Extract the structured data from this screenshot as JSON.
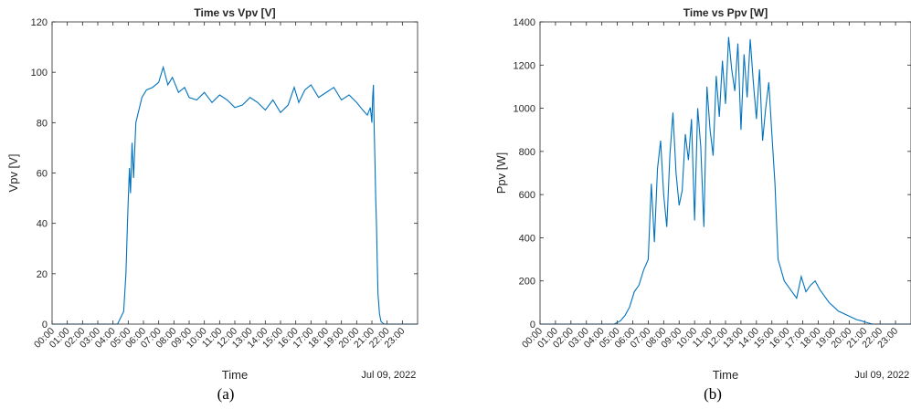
{
  "figure": {
    "panel_labels": [
      "(a)",
      "(b)"
    ]
  },
  "colors": {
    "line": "#0072BD",
    "axes": "#262626",
    "text": "#262626"
  },
  "chart_data": [
    {
      "type": "line",
      "title": "Time vs Vpv [V]",
      "xlabel": "Time",
      "ylabel": "Vpv [V]",
      "date_label": "Jul 09, 2022",
      "x_ticks": [
        "00:00",
        "01:00",
        "02:00",
        "03:00",
        "04:00",
        "05:00",
        "06:00",
        "07:00",
        "08:00",
        "09:00",
        "10:00",
        "11:00",
        "12:00",
        "13:00",
        "14:00",
        "15:00",
        "16:00",
        "17:00",
        "18:00",
        "19:00",
        "20:00",
        "21:00",
        "22:00",
        "23:00"
      ],
      "xlim": [
        0,
        24
      ],
      "ylim": [
        0,
        120
      ],
      "y_ticks": [
        0,
        20,
        40,
        60,
        80,
        100,
        120
      ],
      "grid": false,
      "series": [
        {
          "x_hours": [
            0.0,
            4.3,
            4.7,
            4.85,
            4.95,
            5.0,
            5.08,
            5.15,
            5.25,
            5.35,
            5.5,
            5.7,
            5.9,
            6.2,
            6.6,
            7.0,
            7.3,
            7.6,
            7.9,
            8.3,
            8.7,
            9.0,
            9.5,
            10.0,
            10.5,
            11.0,
            11.5,
            12.0,
            12.5,
            13.0,
            13.5,
            14.0,
            14.5,
            15.0,
            15.5,
            15.9,
            16.2,
            16.6,
            17.0,
            17.5,
            18.0,
            18.5,
            19.0,
            19.5,
            20.0,
            20.4,
            20.7,
            20.9,
            21.0,
            21.05,
            21.1,
            21.15,
            21.2,
            21.25,
            21.3,
            21.35,
            21.4,
            21.5,
            21.6,
            21.8,
            22.0,
            24.0
          ],
          "values": [
            0,
            0,
            5,
            20,
            40,
            49,
            62,
            52,
            72,
            58,
            80,
            85,
            90,
            93,
            94,
            96,
            102,
            95,
            98,
            92,
            94,
            90,
            89,
            92,
            88,
            91,
            89,
            86,
            87,
            90,
            88,
            85,
            89,
            84,
            87,
            94,
            88,
            93,
            95,
            90,
            92,
            94,
            89,
            91,
            88,
            85,
            83,
            86,
            80,
            90,
            95,
            78,
            65,
            50,
            40,
            25,
            12,
            4,
            1,
            0,
            0,
            0
          ]
        }
      ]
    },
    {
      "type": "line",
      "title": "Time vs Ppv [W]",
      "xlabel": "Time",
      "ylabel": "Ppv [W]",
      "date_label": "Jul 09, 2022",
      "x_ticks": [
        "00:00",
        "01:00",
        "02:00",
        "03:00",
        "04:00",
        "05:00",
        "06:00",
        "07:00",
        "08:00",
        "09:00",
        "10:00",
        "11:00",
        "12:00",
        "13:00",
        "14:00",
        "15:00",
        "16:00",
        "17:00",
        "18:00",
        "19:00",
        "20:00",
        "21:00",
        "22:00",
        "23:00"
      ],
      "xlim": [
        0,
        24
      ],
      "ylim": [
        0,
        1400
      ],
      "y_ticks": [
        0,
        200,
        400,
        600,
        800,
        1000,
        1200,
        1400
      ],
      "grid": false,
      "series": [
        {
          "x_hours": [
            0.0,
            4.8,
            5.2,
            5.5,
            5.8,
            6.1,
            6.4,
            6.7,
            7.0,
            7.2,
            7.4,
            7.6,
            7.8,
            8.0,
            8.2,
            8.4,
            8.6,
            8.8,
            9.0,
            9.2,
            9.4,
            9.6,
            9.8,
            10.0,
            10.2,
            10.4,
            10.6,
            10.8,
            11.0,
            11.2,
            11.4,
            11.6,
            11.8,
            12.0,
            12.2,
            12.4,
            12.6,
            12.8,
            13.0,
            13.2,
            13.4,
            13.6,
            13.8,
            14.0,
            14.2,
            14.4,
            14.6,
            14.8,
            15.0,
            15.2,
            15.4,
            15.6,
            15.8,
            16.0,
            16.3,
            16.6,
            16.9,
            17.2,
            17.5,
            17.8,
            18.1,
            18.4,
            18.7,
            19.0,
            19.3,
            19.6,
            19.9,
            20.2,
            20.5,
            20.8,
            21.0,
            21.5,
            24.0
          ],
          "values": [
            0,
            0,
            15,
            40,
            80,
            150,
            180,
            250,
            300,
            650,
            380,
            720,
            850,
            600,
            450,
            780,
            980,
            700,
            550,
            620,
            880,
            760,
            950,
            480,
            1000,
            820,
            450,
            1100,
            900,
            780,
            1150,
            960,
            1220,
            1020,
            1330,
            1180,
            1080,
            1300,
            900,
            1250,
            1050,
            1320,
            1120,
            950,
            1180,
            850,
            1000,
            1120,
            880,
            650,
            300,
            250,
            200,
            180,
            150,
            120,
            220,
            150,
            180,
            200,
            160,
            130,
            100,
            80,
            60,
            50,
            40,
            30,
            20,
            15,
            10,
            0,
            0
          ]
        }
      ]
    }
  ]
}
